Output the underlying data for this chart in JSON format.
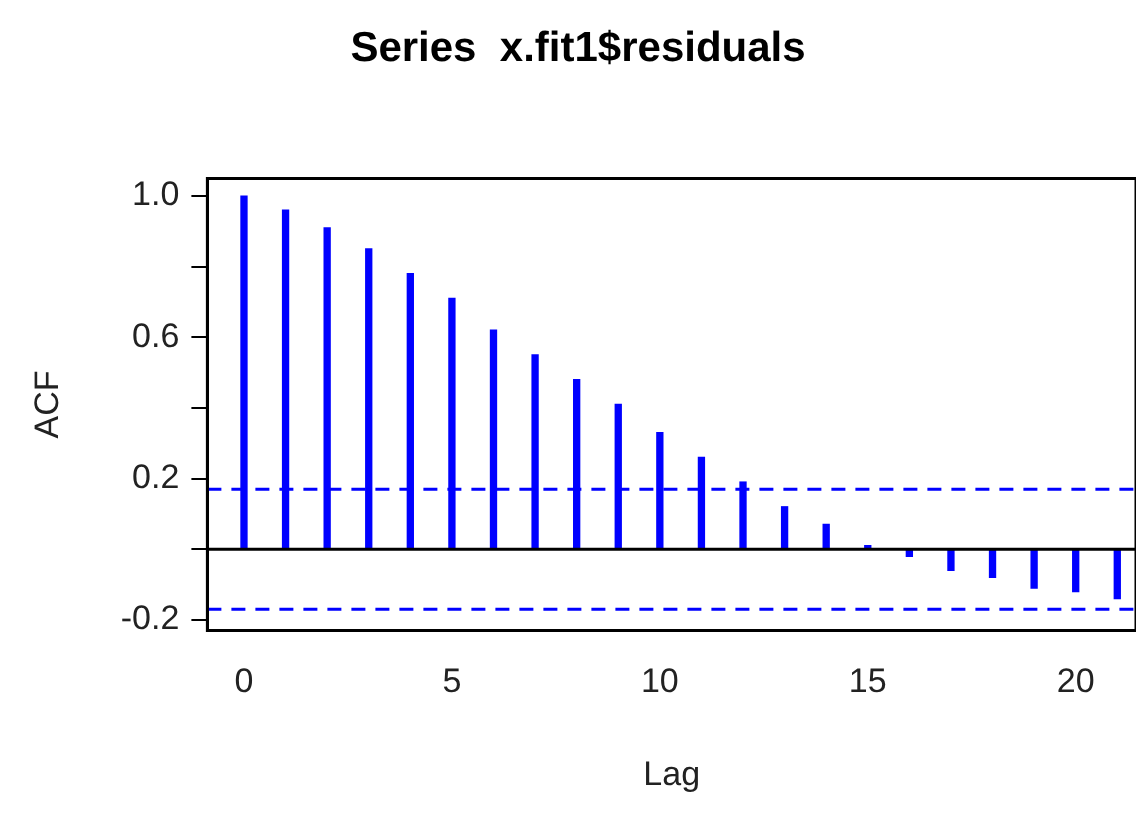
{
  "chart_data": {
    "type": "bar",
    "title": "Series  x.fit1$residuals",
    "xlabel": "Lag",
    "ylabel": "ACF",
    "x": [
      0,
      1,
      2,
      3,
      4,
      5,
      6,
      7,
      8,
      9,
      10,
      11,
      12,
      13,
      14,
      15,
      16,
      17,
      18,
      19,
      20,
      21
    ],
    "series": [
      {
        "color": "#0000ff",
        "values": [
          1.0,
          0.96,
          0.91,
          0.85,
          0.78,
          0.71,
          0.62,
          0.55,
          0.48,
          0.41,
          0.33,
          0.26,
          0.19,
          0.12,
          0.07,
          0.01,
          -0.02,
          -0.06,
          -0.08,
          -0.11,
          -0.12,
          -0.14
        ]
      }
    ],
    "xlim": [
      -0.88,
      21.45
    ],
    "xticks": [
      0,
      5,
      10,
      15,
      20
    ],
    "ylim": [
      -0.23,
      1.05
    ],
    "yticks": [
      {
        "value": -0.2,
        "label": "-0.2"
      },
      {
        "value": 0,
        "label": null
      },
      {
        "value": 0.2,
        "label": "0.2"
      },
      {
        "value": 0.4,
        "label": null
      },
      {
        "value": 0.6,
        "label": "0.6"
      },
      {
        "value": 0.8,
        "label": null
      },
      {
        "value": 1.0,
        "label": "1.0"
      }
    ],
    "ref_lines": [
      {
        "axis": "y",
        "value": 0,
        "color": "#000000",
        "line_style": "solid"
      },
      {
        "axis": "y",
        "value": 0.17,
        "color": "#0000ff",
        "line_style": "dashed"
      },
      {
        "axis": "y",
        "value": -0.17,
        "color": "#0000ff",
        "line_style": "dashed"
      }
    ],
    "grid": false,
    "legend": false
  }
}
